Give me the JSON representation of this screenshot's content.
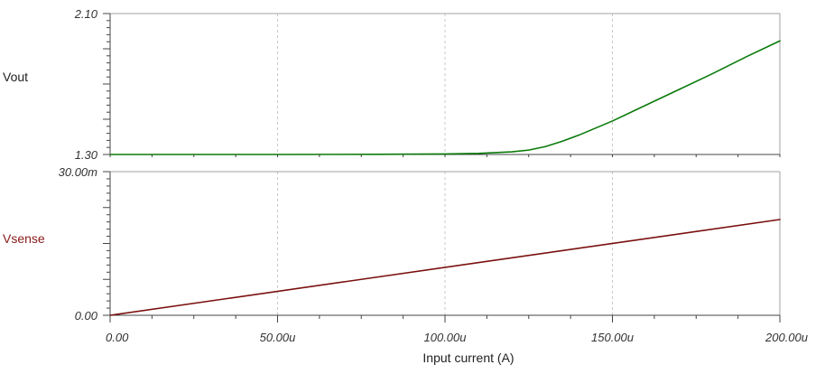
{
  "chart_data": [
    {
      "type": "line",
      "panel": "top",
      "ylabel": "Vout",
      "ylabel_color": "#222222",
      "ylim": [
        1.3,
        2.1
      ],
      "ytick_labels": [
        "2.10",
        "1.30"
      ],
      "xlim": [
        0,
        200
      ],
      "series": [
        {
          "color": "#0a7a0a",
          "x": [
            0,
            50,
            80,
            100,
            110,
            120,
            125,
            130,
            135,
            140,
            150,
            160,
            170,
            180,
            190,
            200
          ],
          "y": [
            1.3,
            1.3,
            1.301,
            1.303,
            1.306,
            1.315,
            1.325,
            1.345,
            1.375,
            1.41,
            1.49,
            1.58,
            1.67,
            1.76,
            1.855,
            1.945
          ]
        }
      ],
      "grid": true
    },
    {
      "type": "line",
      "panel": "bottom",
      "ylabel": "Vsense",
      "ylabel_color": "#8b1a1a",
      "ylim": [
        0,
        30
      ],
      "ytick_labels": [
        "30.00m",
        "0.00"
      ],
      "xlim": [
        0,
        200
      ],
      "series": [
        {
          "color": "#7a0f0f",
          "x": [
            0,
            200
          ],
          "y": [
            0,
            20
          ]
        }
      ],
      "grid": true
    }
  ],
  "x_axis": {
    "label": "Input current (A)",
    "tick_values": [
      0,
      50,
      100,
      150,
      200
    ],
    "tick_labels": [
      "0.00",
      "50.00u",
      "100.00u",
      "150.00u",
      "200.00u"
    ]
  },
  "colors": {
    "grid": "#c8c8c8",
    "frame": "#a0a0a0",
    "axis": "#444444"
  }
}
